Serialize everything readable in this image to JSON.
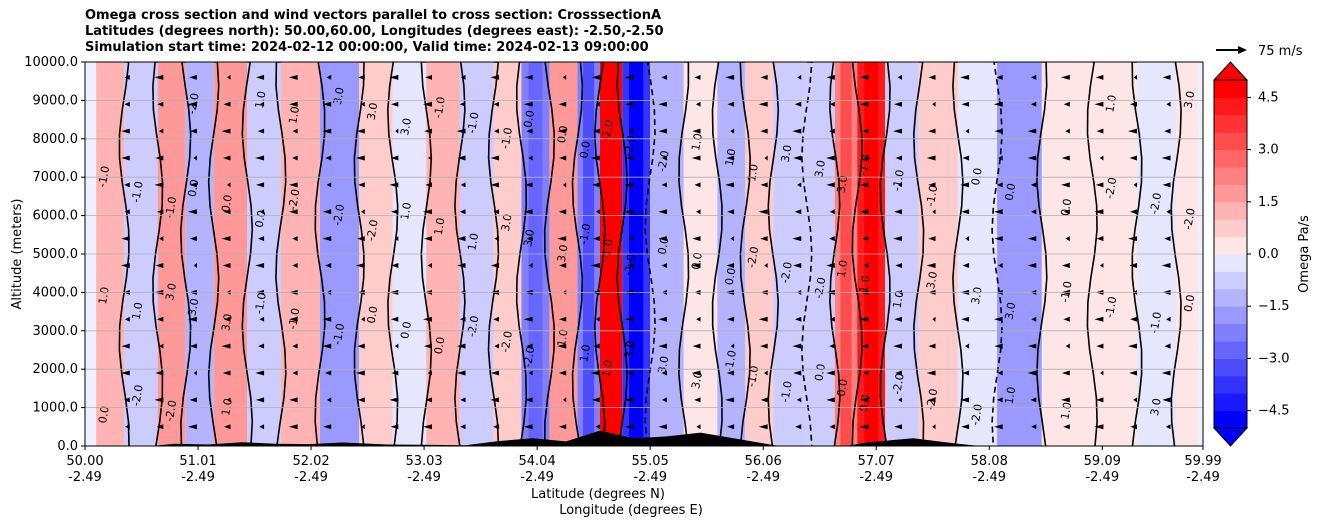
{
  "chart_data": {
    "type": "heatmap",
    "title_lines": [
      "Omega cross section and wind vectors parallel to cross section: CrosssectionA",
      "Latitudes (degrees north): 50.00,60.00, Longitudes (degrees east): -2.50,-2.50",
      "Simulation start time: 2024-02-12 00:00:00, Valid time: 2024-02-13 09:00:00"
    ],
    "xlabel_lines": [
      "Latitude (degrees N)",
      "Longitude (degrees E)"
    ],
    "ylabel": "Altitude (meters)",
    "ylim": [
      0,
      10000
    ],
    "y_ticks": [
      0,
      1000,
      2000,
      3000,
      4000,
      5000,
      6000,
      7000,
      8000,
      9000,
      10000
    ],
    "y_tick_labels": [
      "0.0",
      "1000.0",
      "2000.0",
      "3000.0",
      "4000.0",
      "5000.0",
      "6000.0",
      "7000.0",
      "8000.0",
      "9000.0",
      "10000.0"
    ],
    "xlim": [
      50.0,
      59.99
    ],
    "x_ticks": [
      {
        "lat": "50.00",
        "lon": "-2.49"
      },
      {
        "lat": "51.01",
        "lon": "-2.49"
      },
      {
        "lat": "52.02",
        "lon": "-2.49"
      },
      {
        "lat": "53.03",
        "lon": "-2.49"
      },
      {
        "lat": "54.04",
        "lon": "-2.49"
      },
      {
        "lat": "55.05",
        "lon": "-2.49"
      },
      {
        "lat": "56.06",
        "lon": "-2.49"
      },
      {
        "lat": "57.07",
        "lon": "-2.49"
      },
      {
        "lat": "58.08",
        "lon": "-2.49"
      },
      {
        "lat": "59.09",
        "lon": "-2.49"
      },
      {
        "lat": "59.99",
        "lon": "-2.49"
      }
    ],
    "colorbar": {
      "label": "Omega Pa/s",
      "range": [
        -5,
        5
      ],
      "extend": "both",
      "ticks": [
        4.5,
        3.0,
        1.5,
        0.0,
        -1.5,
        -3.0,
        -4.5
      ],
      "tick_labels": [
        "4.5",
        "3.0",
        "1.5",
        "0.0",
        "−1.5",
        "−3.0",
        "−4.5"
      ],
      "levels": 20,
      "colors": {
        "negative": "#0000ff",
        "zero": "#ffffff",
        "positive": "#ff0000"
      }
    },
    "quiver_key": {
      "label": "75 m/s"
    },
    "contour_labels": [
      "0.0",
      "1.0",
      "-1.0",
      "-2.0",
      "3.0"
    ],
    "omega_bands": [
      {
        "lat": 50.2,
        "value": 1.5
      },
      {
        "lat": 50.5,
        "value": -0.8
      },
      {
        "lat": 50.8,
        "value": 1.8
      },
      {
        "lat": 51.0,
        "value": -1.2
      },
      {
        "lat": 51.3,
        "value": 2.0
      },
      {
        "lat": 51.6,
        "value": -0.6
      },
      {
        "lat": 51.9,
        "value": 1.2
      },
      {
        "lat": 52.3,
        "value": -1.8
      },
      {
        "lat": 52.6,
        "value": 1.0
      },
      {
        "lat": 52.9,
        "value": -0.5
      },
      {
        "lat": 53.2,
        "value": 1.5
      },
      {
        "lat": 53.5,
        "value": -1.0
      },
      {
        "lat": 53.8,
        "value": 0.8
      },
      {
        "lat": 54.0,
        "value": -2.2
      },
      {
        "lat": 54.3,
        "value": 1.8
      },
      {
        "lat": 54.5,
        "value": -2.5
      },
      {
        "lat": 54.7,
        "value": 4.8
      },
      {
        "lat": 54.9,
        "value": -3.8
      },
      {
        "lat": 55.2,
        "value": -1.5
      },
      {
        "lat": 55.5,
        "value": 0.5
      },
      {
        "lat": 55.8,
        "value": -1.2
      },
      {
        "lat": 56.0,
        "value": 1.0
      },
      {
        "lat": 56.3,
        "value": -1.0
      },
      {
        "lat": 56.6,
        "value": -0.8
      },
      {
        "lat": 56.8,
        "value": 2.5
      },
      {
        "lat": 57.0,
        "value": 4.2
      },
      {
        "lat": 57.3,
        "value": -0.6
      },
      {
        "lat": 57.6,
        "value": 0.6
      },
      {
        "lat": 58.0,
        "value": -0.4
      },
      {
        "lat": 58.3,
        "value": -1.8
      },
      {
        "lat": 58.8,
        "value": 0.3
      },
      {
        "lat": 59.2,
        "value": 0.5
      },
      {
        "lat": 59.6,
        "value": -0.2
      },
      {
        "lat": 59.9,
        "value": 0.4
      }
    ],
    "terrain": [
      {
        "lat": 50.6,
        "alt": 0
      },
      {
        "lat": 50.8,
        "alt": 60
      },
      {
        "lat": 51.1,
        "alt": 40
      },
      {
        "lat": 51.4,
        "alt": 100
      },
      {
        "lat": 51.7,
        "alt": 60
      },
      {
        "lat": 52.0,
        "alt": 50
      },
      {
        "lat": 52.3,
        "alt": 90
      },
      {
        "lat": 52.7,
        "alt": 40
      },
      {
        "lat": 53.0,
        "alt": 30
      },
      {
        "lat": 53.4,
        "alt": 20
      },
      {
        "lat": 53.7,
        "alt": 130
      },
      {
        "lat": 54.0,
        "alt": 200
      },
      {
        "lat": 54.3,
        "alt": 120
      },
      {
        "lat": 54.6,
        "alt": 400
      },
      {
        "lat": 54.9,
        "alt": 200
      },
      {
        "lat": 55.2,
        "alt": 250
      },
      {
        "lat": 55.5,
        "alt": 350
      },
      {
        "lat": 55.9,
        "alt": 150
      },
      {
        "lat": 56.2,
        "alt": 0
      },
      {
        "lat": 56.8,
        "alt": 0
      },
      {
        "lat": 57.0,
        "alt": 100
      },
      {
        "lat": 57.4,
        "alt": 200
      },
      {
        "lat": 57.8,
        "alt": 60
      },
      {
        "lat": 58.0,
        "alt": 0
      }
    ]
  }
}
